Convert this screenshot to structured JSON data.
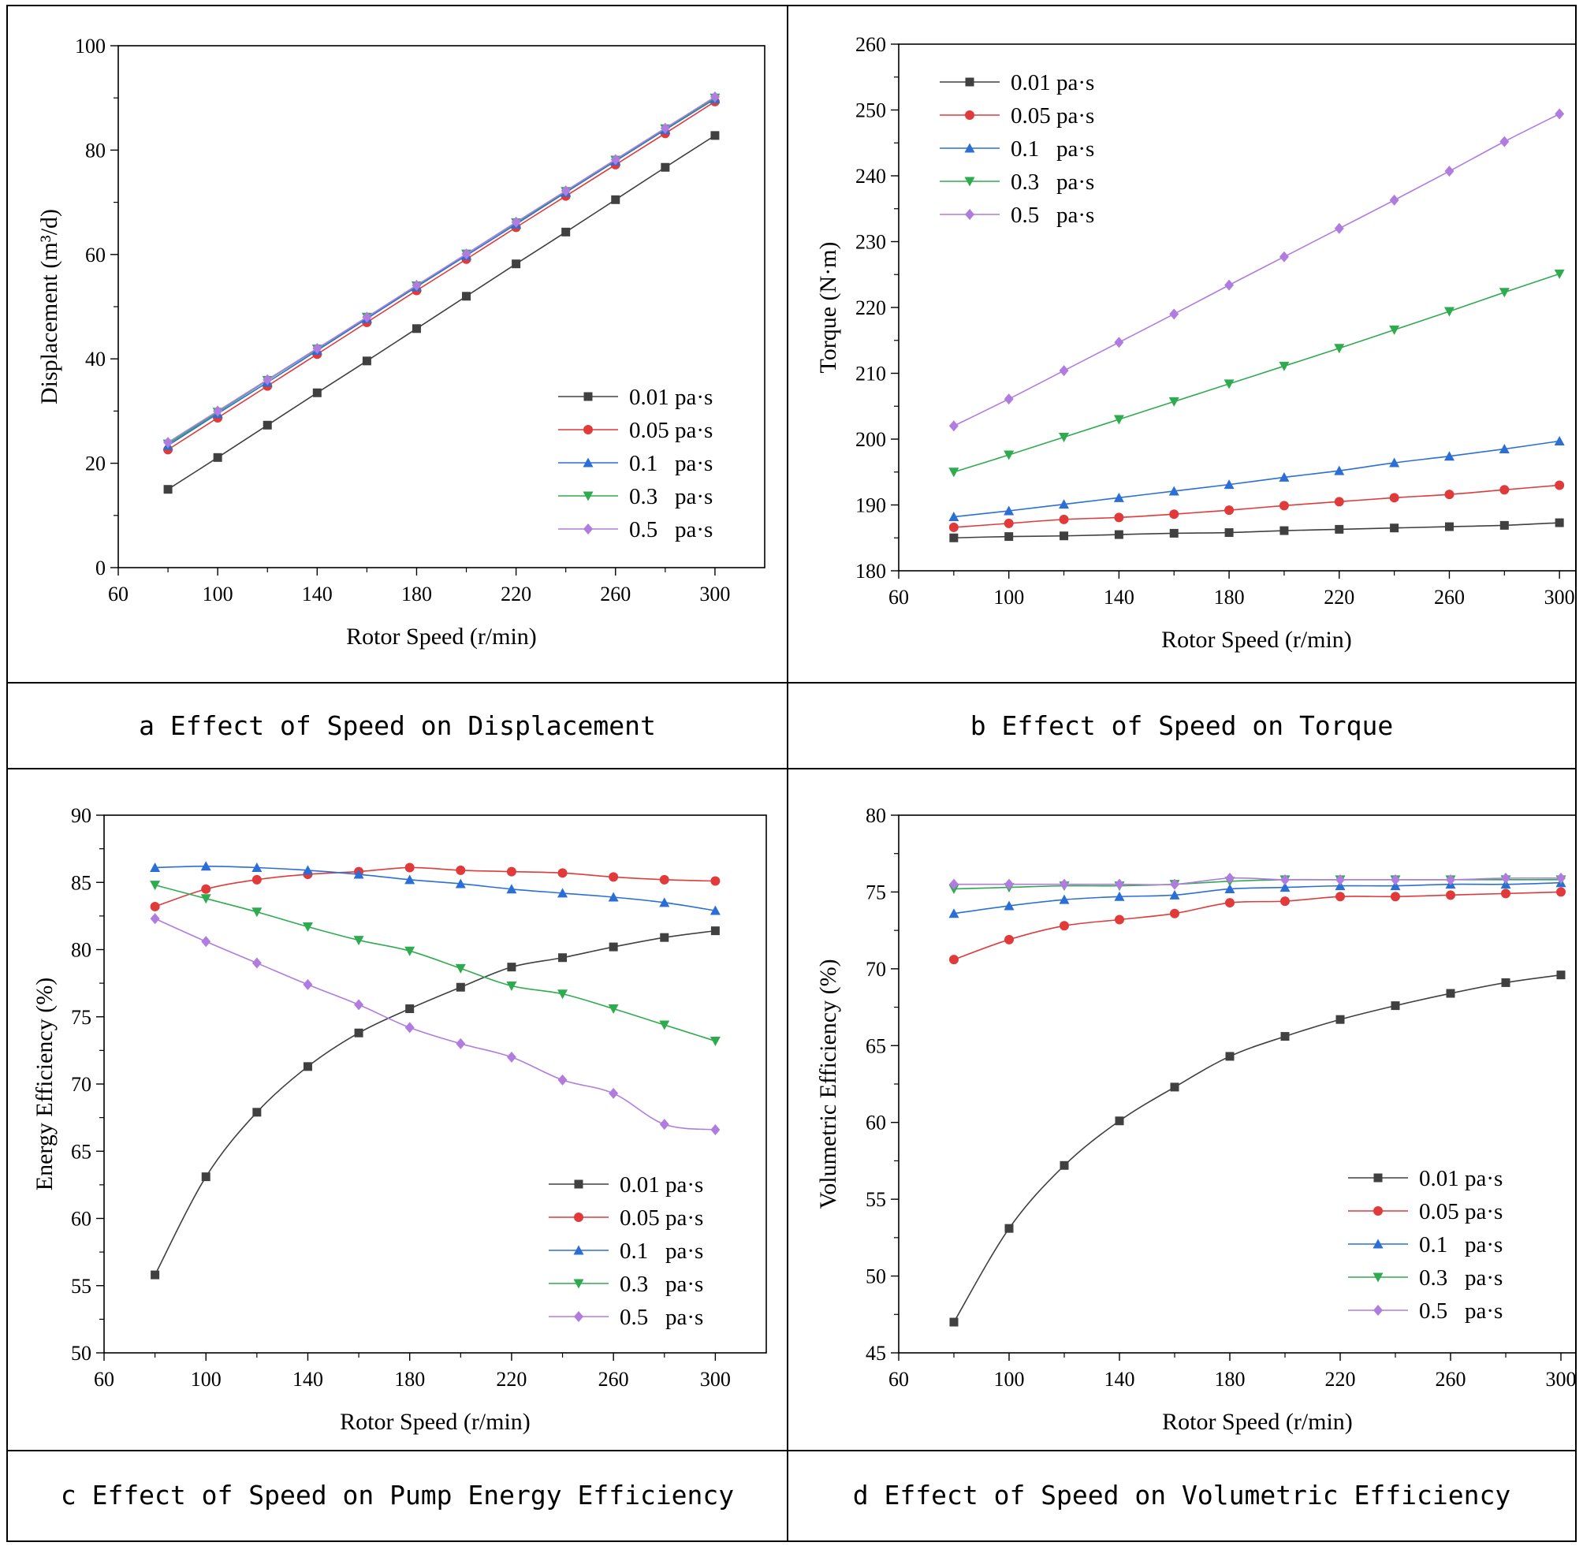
{
  "captions": [
    "a Effect of Speed on Displacement",
    "b Effect of Speed on Torque",
    "c Effect of Speed on Pump Energy Efficiency",
    "d Effect of Speed on Volumetric Efficiency"
  ],
  "series_styles": [
    {
      "color": "#404040",
      "marker": "square"
    },
    {
      "color": "#e03a3a",
      "marker": "circle"
    },
    {
      "color": "#2b6fd6",
      "marker": "triangle-up"
    },
    {
      "color": "#2fab4f",
      "marker": "triangle-down"
    },
    {
      "color": "#b07ce0",
      "marker": "diamond"
    }
  ],
  "chart_data": [
    {
      "type": "line",
      "xlabel": "Rotor Speed (r/min)",
      "ylabel": "Displacement (m³/d)",
      "xlim": [
        60,
        320
      ],
      "ylim": [
        0,
        100
      ],
      "xticks": [
        60,
        100,
        140,
        180,
        220,
        260,
        300
      ],
      "yticks": [
        0,
        20,
        40,
        60,
        80,
        100
      ],
      "legend_position": "lower-right",
      "x": [
        80,
        100,
        120,
        140,
        160,
        180,
        200,
        220,
        240,
        260,
        280,
        300
      ],
      "series": [
        {
          "name": "0.01 pa·s",
          "values": [
            15.0,
            21.1,
            27.3,
            33.5,
            39.6,
            45.8,
            52.0,
            58.2,
            64.3,
            70.5,
            76.7,
            82.8
          ]
        },
        {
          "name": "0.05 pa·s",
          "values": [
            22.6,
            28.7,
            34.8,
            40.9,
            47.0,
            53.1,
            59.1,
            65.2,
            71.2,
            77.2,
            83.2,
            89.3
          ]
        },
        {
          "name": "0.1   pa·s",
          "values": [
            23.4,
            29.5,
            35.5,
            41.6,
            47.7,
            53.8,
            59.8,
            65.8,
            71.9,
            77.9,
            83.9,
            89.8
          ]
        },
        {
          "name": "0.3   pa·s",
          "values": [
            23.7,
            29.8,
            35.9,
            41.9,
            48.0,
            54.0,
            60.1,
            66.1,
            72.1,
            78.1,
            84.1,
            90.0
          ]
        },
        {
          "name": "0.5   pa·s",
          "values": [
            24.0,
            30.0,
            36.0,
            42.0,
            48.0,
            54.1,
            60.1,
            66.2,
            72.2,
            78.2,
            84.2,
            90.2
          ]
        }
      ]
    },
    {
      "type": "line",
      "xlabel": "Rotor Speed (r/min)",
      "ylabel": "Torque (N·m)",
      "xlim": [
        60,
        320
      ],
      "ylim": [
        180,
        260
      ],
      "xticks": [
        60,
        100,
        140,
        180,
        220,
        260,
        300
      ],
      "yticks": [
        180,
        190,
        200,
        210,
        220,
        230,
        240,
        250,
        260
      ],
      "legend_position": "upper-left",
      "x": [
        80,
        100,
        120,
        140,
        160,
        180,
        200,
        220,
        240,
        260,
        280,
        300
      ],
      "series": [
        {
          "name": "0.01 pa·s",
          "values": [
            185.0,
            185.2,
            185.3,
            185.5,
            185.7,
            185.8,
            186.1,
            186.3,
            186.5,
            186.7,
            186.9,
            187.3
          ]
        },
        {
          "name": "0.05 pa·s",
          "values": [
            186.6,
            187.2,
            187.8,
            188.1,
            188.6,
            189.2,
            189.9,
            190.5,
            191.1,
            191.6,
            192.3,
            193.0
          ]
        },
        {
          "name": "0.1   pa·s",
          "values": [
            188.2,
            189.1,
            190.1,
            191.1,
            192.1,
            193.1,
            194.2,
            195.2,
            196.4,
            197.4,
            198.5,
            199.7
          ]
        },
        {
          "name": "0.3   pa·s",
          "values": [
            195.0,
            197.6,
            200.3,
            203.0,
            205.7,
            208.4,
            211.1,
            213.8,
            216.6,
            219.4,
            222.3,
            225.1
          ]
        },
        {
          "name": "0.5   pa·s",
          "values": [
            202.0,
            206.1,
            210.4,
            214.7,
            219.0,
            223.4,
            227.7,
            232.0,
            236.3,
            240.7,
            245.2,
            249.4
          ]
        }
      ]
    },
    {
      "type": "line",
      "xlabel": "Rotor Speed (r/min)",
      "ylabel": "Energy Efficiency (%)",
      "xlim": [
        60,
        320
      ],
      "ylim": [
        50,
        90
      ],
      "xticks": [
        60,
        100,
        140,
        180,
        220,
        260,
        300
      ],
      "yticks": [
        50,
        55,
        60,
        65,
        70,
        75,
        80,
        85,
        90
      ],
      "legend_position": "lower-right",
      "x": [
        80,
        100,
        120,
        140,
        160,
        180,
        200,
        220,
        240,
        260,
        280,
        300
      ],
      "series": [
        {
          "name": "0.01 pa·s",
          "values": [
            55.8,
            63.1,
            67.9,
            71.3,
            73.8,
            75.6,
            77.2,
            78.7,
            79.4,
            80.2,
            80.9,
            81.4
          ]
        },
        {
          "name": "0.05 pa·s",
          "values": [
            83.2,
            84.5,
            85.2,
            85.6,
            85.8,
            86.1,
            85.9,
            85.8,
            85.7,
            85.4,
            85.2,
            85.1
          ]
        },
        {
          "name": "0.1   pa·s",
          "values": [
            86.1,
            86.2,
            86.1,
            85.9,
            85.6,
            85.2,
            84.9,
            84.5,
            84.2,
            83.9,
            83.5,
            82.9
          ]
        },
        {
          "name": "0.3   pa·s",
          "values": [
            84.8,
            83.8,
            82.8,
            81.7,
            80.7,
            79.9,
            78.6,
            77.3,
            76.7,
            75.6,
            74.4,
            73.2
          ]
        },
        {
          "name": "0.5   pa·s",
          "values": [
            82.3,
            80.6,
            79.0,
            77.4,
            75.9,
            74.2,
            73.0,
            72.0,
            70.3,
            69.3,
            67.0,
            66.6
          ]
        }
      ]
    },
    {
      "type": "line",
      "xlabel": "Rotor Speed (r/min)",
      "ylabel": "Volumetric Efficiency (%)",
      "xlim": [
        60,
        320
      ],
      "ylim": [
        45,
        80
      ],
      "xticks": [
        60,
        100,
        140,
        180,
        220,
        260,
        300
      ],
      "yticks": [
        45,
        50,
        55,
        60,
        65,
        70,
        75,
        80
      ],
      "legend_position": "lower-right",
      "x": [
        80,
        100,
        120,
        140,
        160,
        180,
        200,
        220,
        240,
        260,
        280,
        300
      ],
      "series": [
        {
          "name": "0.01 pa·s",
          "values": [
            47.0,
            53.1,
            57.2,
            60.1,
            62.3,
            64.3,
            65.6,
            66.7,
            67.6,
            68.4,
            69.1,
            69.6
          ]
        },
        {
          "name": "0.05 pa·s",
          "values": [
            70.6,
            71.9,
            72.8,
            73.2,
            73.6,
            74.3,
            74.4,
            74.7,
            74.7,
            74.8,
            74.9,
            75.0
          ]
        },
        {
          "name": "0.1   pa·s",
          "values": [
            73.6,
            74.1,
            74.5,
            74.7,
            74.8,
            75.2,
            75.3,
            75.4,
            75.4,
            75.5,
            75.5,
            75.6
          ]
        },
        {
          "name": "0.3   pa·s",
          "values": [
            75.2,
            75.3,
            75.4,
            75.4,
            75.5,
            75.7,
            75.8,
            75.8,
            75.8,
            75.8,
            75.8,
            75.8
          ]
        },
        {
          "name": "0.5   pa·s",
          "values": [
            75.5,
            75.5,
            75.5,
            75.5,
            75.5,
            75.9,
            75.8,
            75.8,
            75.8,
            75.8,
            75.9,
            75.9
          ]
        }
      ]
    }
  ]
}
